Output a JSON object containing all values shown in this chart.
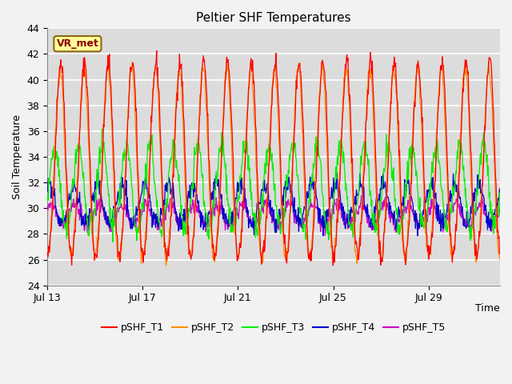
{
  "title": "Peltier SHF Temperatures",
  "ylabel": "Soil Temperature",
  "xlabel": "Time",
  "ylim": [
    24,
    44
  ],
  "annotation_text": "VR_met",
  "annotation_bg": "#FFFF99",
  "annotation_border": "#8B6914",
  "annotation_text_color": "#8B0000",
  "plot_bg_color": "#DCDCDC",
  "fig_bg_color": "#F2F2F2",
  "grid_color": "#FFFFFF",
  "xtick_labels": [
    "Jul 13",
    "Jul 17",
    "Jul 21",
    "Jul 25",
    "Jul 29"
  ],
  "xtick_positions_days": [
    0,
    4,
    8,
    12,
    16
  ],
  "ytick_positions": [
    24,
    26,
    28,
    30,
    32,
    34,
    36,
    38,
    40,
    42,
    44
  ],
  "series": {
    "pSHF_T1": {
      "color": "#FF0000",
      "amplitude": 7.5,
      "baseline": 33.5,
      "phase_shift": 0.0,
      "noise": 0.4
    },
    "pSHF_T2": {
      "color": "#FF8C00",
      "amplitude": 7.3,
      "baseline": 33.2,
      "phase_shift": 0.03,
      "noise": 0.3
    },
    "pSHF_T3": {
      "color": "#00EE00",
      "amplitude": 3.2,
      "baseline": 31.5,
      "phase_shift": 0.25,
      "noise": 0.5
    },
    "pSHF_T4": {
      "color": "#0000CC",
      "amplitude": 1.5,
      "baseline": 30.3,
      "phase_shift": 0.45,
      "noise": 0.4
    },
    "pSHF_T5": {
      "color": "#CC00CC",
      "amplitude": 0.8,
      "baseline": 29.5,
      "phase_shift": 0.4,
      "noise": 0.3
    }
  },
  "legend_order": [
    "pSHF_T1",
    "pSHF_T2",
    "pSHF_T3",
    "pSHF_T4",
    "pSHF_T5"
  ],
  "total_days": 19,
  "samples_per_day": 48,
  "seed": 42
}
